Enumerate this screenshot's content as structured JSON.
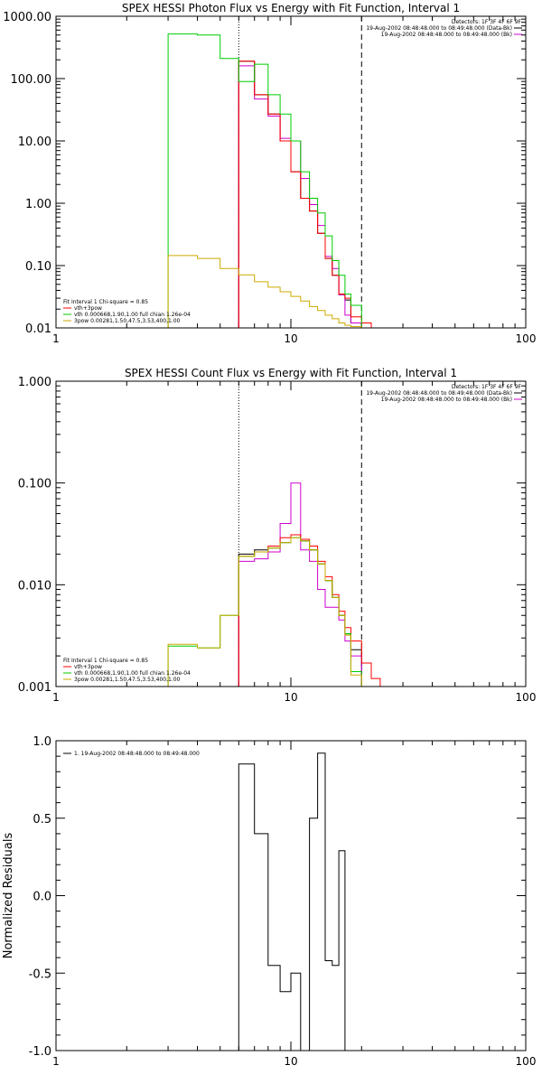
{
  "chart_data": [
    {
      "type": "line",
      "title": "SPEX HESSI Photon Flux vs Energy with Fit Function, Interval 1",
      "xlabel": "",
      "ylabel": "",
      "xscale": "log",
      "yscale": "log",
      "xlim": [
        1,
        100
      ],
      "ylim": [
        0.01,
        1000
      ],
      "xticks": [
        {
          "v": 1,
          "label": "1"
        },
        {
          "v": 10,
          "label": "10"
        },
        {
          "v": 100,
          "label": "100"
        }
      ],
      "yticks": [
        {
          "v": 0.01,
          "label": "0.01"
        },
        {
          "v": 0.1,
          "label": "0.10"
        },
        {
          "v": 1,
          "label": "1.00"
        },
        {
          "v": 10,
          "label": "10.00"
        },
        {
          "v": 100,
          "label": "100.00"
        },
        {
          "v": 1000,
          "label": "1000.00"
        }
      ],
      "vlines": [
        {
          "x": 6.0,
          "style": "dotted",
          "color": "#000000"
        },
        {
          "x": 20.0,
          "style": "dashed",
          "color": "#000000"
        }
      ],
      "header_lines": [
        {
          "text": "Detectors: 1F 3F 4F 6F 9F",
          "swatch": ""
        },
        {
          "text": "19-Aug-2002 08:48:48.000 to 08:49:48.000 (Data-Bk)",
          "swatch": "#000000"
        },
        {
          "text": "19-Aug-2002 08:48:48.000 to 08:49:48.000 (Bk)",
          "swatch": "#cc00cc"
        }
      ],
      "legend_title": "Fit Interval 1   Chi-square = 0.85",
      "legend": [
        {
          "text": "vth+3pow",
          "color": "#ff0000"
        },
        {
          "text": "vth 0.000668,1.90,1.00  full chian 1.26e-04",
          "color": "#00cc00"
        },
        {
          "text": "3pow 0.00281,1.50,47.5,3.53,400,1.00",
          "color": "#ccaa00"
        }
      ],
      "series": [
        {
          "color": "#000000",
          "edges": [
            6,
            7,
            8,
            9,
            10,
            11,
            12,
            13,
            14,
            15,
            16,
            17,
            18,
            20
          ],
          "values": [
            190,
            55,
            27,
            10,
            3.2,
            1.2,
            0.75,
            0.33,
            0.13,
            0.07,
            0.034,
            0.028,
            0.012
          ]
        },
        {
          "color": "#cc00cc",
          "edges": [
            6,
            7,
            8,
            9,
            10,
            11,
            12,
            13,
            14,
            15,
            16,
            17,
            18,
            20
          ],
          "values": [
            160,
            47,
            25,
            11,
            10,
            2.5,
            0.95,
            0.44,
            0.14,
            0.09,
            0.034,
            0.016,
            0.012
          ]
        },
        {
          "color": "#ff0000",
          "edges": [
            6,
            7,
            8,
            9,
            10,
            11,
            12,
            13,
            14,
            15,
            16,
            17,
            18,
            20,
            22
          ],
          "values": [
            190,
            55,
            27,
            10,
            3.2,
            1.2,
            0.75,
            0.33,
            0.13,
            0.07,
            0.035,
            0.03,
            0.015,
            0.012
          ]
        },
        {
          "color": "#00cc00",
          "edges": [
            3,
            4,
            5,
            6,
            7,
            8,
            9,
            10,
            11,
            12,
            13,
            14,
            15,
            16,
            17,
            18,
            20
          ],
          "values": [
            520,
            500,
            210,
            90,
            170,
            55,
            27,
            10,
            3.2,
            1.2,
            0.7,
            0.3,
            0.12,
            0.07,
            0.035,
            0.023
          ]
        },
        {
          "color": "#ccaa00",
          "edges": [
            3,
            4,
            5,
            6,
            7,
            8,
            9,
            10,
            11,
            12,
            13,
            14,
            15,
            16,
            17,
            18,
            20
          ],
          "values": [
            0.145,
            0.13,
            0.09,
            0.071,
            0.055,
            0.045,
            0.038,
            0.032,
            0.027,
            0.022,
            0.019,
            0.016,
            0.014,
            0.012,
            0.011,
            0.0105
          ]
        }
      ]
    },
    {
      "type": "line",
      "title": "SPEX HESSI Count Flux vs Energy with Fit Function, Interval 1",
      "xlabel": "",
      "ylabel": "",
      "xscale": "log",
      "yscale": "log",
      "xlim": [
        1,
        100
      ],
      "ylim": [
        0.001,
        1
      ],
      "xticks": [
        {
          "v": 1,
          "label": "1"
        },
        {
          "v": 10,
          "label": "10"
        },
        {
          "v": 100,
          "label": "100"
        }
      ],
      "yticks": [
        {
          "v": 0.001,
          "label": "0.001"
        },
        {
          "v": 0.01,
          "label": "0.010"
        },
        {
          "v": 0.1,
          "label": "0.100"
        },
        {
          "v": 1,
          "label": "1.000"
        }
      ],
      "vlines": [
        {
          "x": 6.0,
          "style": "dotted",
          "color": "#000000"
        },
        {
          "x": 20.0,
          "style": "dashed",
          "color": "#000000"
        }
      ],
      "header_lines": [
        {
          "text": "Detectors: 1F 3F 4F 6F 9F",
          "swatch": ""
        },
        {
          "text": "19-Aug-2002 08:48:48.000 to 08:49:48.000 (Data-Bk)",
          "swatch": "#000000"
        },
        {
          "text": "19-Aug-2002 08:48:48.000 to 08:49:48.000 (Bk)",
          "swatch": "#cc00cc"
        }
      ],
      "legend_title": "Fit Interval 1   Chi-square = 0.85",
      "legend": [
        {
          "text": "vth+3pow",
          "color": "#ff0000"
        },
        {
          "text": "vth 0.000668,1.90,1.00  full chian 1.26e-04",
          "color": "#00cc00"
        },
        {
          "text": "3pow 0.00281,1.50,47.5,3.53,400,1.00",
          "color": "#ccaa00"
        }
      ],
      "series": [
        {
          "color": "#000000",
          "edges": [
            6,
            7,
            8,
            9,
            10,
            11,
            12,
            13,
            14,
            15,
            16,
            17,
            18,
            20
          ],
          "values": [
            0.02,
            0.022,
            0.023,
            0.026,
            0.031,
            0.027,
            0.022,
            0.016,
            0.011,
            0.0075,
            0.005,
            0.0033,
            0.0023
          ]
        },
        {
          "color": "#cc00cc",
          "edges": [
            6,
            7,
            8,
            9,
            10,
            11,
            12,
            13,
            14,
            15,
            16,
            17,
            18,
            20
          ],
          "values": [
            0.017,
            0.018,
            0.021,
            0.04,
            0.1,
            0.022,
            0.017,
            0.009,
            0.006,
            0.006,
            0.0045,
            0.0028,
            0.002
          ]
        },
        {
          "color": "#ff0000",
          "edges": [
            6,
            7,
            8,
            9,
            10,
            11,
            12,
            13,
            14,
            15,
            16,
            17,
            18,
            20,
            22,
            24
          ],
          "values": [
            0.019,
            0.021,
            0.024,
            0.029,
            0.031,
            0.028,
            0.024,
            0.017,
            0.012,
            0.008,
            0.0055,
            0.0038,
            0.0028,
            0.0017,
            0.0012
          ]
        },
        {
          "color": "#00cc00",
          "edges": [
            3,
            4,
            5,
            6,
            7,
            8,
            9,
            10,
            11,
            12,
            13,
            14,
            15,
            16,
            17,
            18,
            20,
            22
          ],
          "values": [
            0.0025,
            0.0024,
            0.005,
            0.019,
            0.021,
            0.023,
            0.026,
            0.029,
            0.027,
            0.022,
            0.016,
            0.011,
            0.0075,
            0.005,
            0.0033,
            0.0014,
            0.001
          ]
        },
        {
          "color": "#ccaa00",
          "edges": [
            3,
            4,
            5,
            6,
            7,
            8,
            9,
            10,
            11,
            12,
            13,
            14,
            15,
            16,
            17,
            18,
            20
          ],
          "values": [
            0.0026,
            0.0024,
            0.005,
            0.019,
            0.021,
            0.023,
            0.026,
            0.029,
            0.027,
            0.022,
            0.016,
            0.011,
            0.0075,
            0.005,
            0.0032,
            0.0013
          ]
        }
      ]
    },
    {
      "type": "line",
      "title": "",
      "xlabel": "",
      "ylabel": "Normalized Residuals",
      "xscale": "log",
      "yscale": "linear",
      "xlim": [
        1,
        100
      ],
      "ylim": [
        -1,
        1
      ],
      "xticks": [
        {
          "v": 1,
          "label": "1"
        },
        {
          "v": 10,
          "label": "10"
        },
        {
          "v": 100,
          "label": "100"
        }
      ],
      "yticks": [
        {
          "v": -1,
          "label": "-1.0"
        },
        {
          "v": -0.5,
          "label": "-0.5"
        },
        {
          "v": 0,
          "label": "0.0"
        },
        {
          "v": 0.5,
          "label": "0.5"
        },
        {
          "v": 1,
          "label": "1.0"
        }
      ],
      "vlines": [],
      "header_lines": [],
      "legend_title": "",
      "legend": [
        {
          "text": "1. 19-Aug-2002 08:48:48.000 to 08:49:48.000",
          "color": "#000000"
        }
      ],
      "series": [
        {
          "color": "#000000",
          "edges": [
            6,
            7,
            8,
            9,
            10,
            11,
            12,
            13,
            14,
            15,
            16,
            17,
            18,
            20
          ],
          "values": [
            0.85,
            0.4,
            -0.45,
            -0.62,
            -0.5,
            -1.0,
            0.5,
            0.92,
            -0.42,
            -0.45,
            0.29,
            -1.0,
            -1.0
          ]
        }
      ]
    }
  ]
}
